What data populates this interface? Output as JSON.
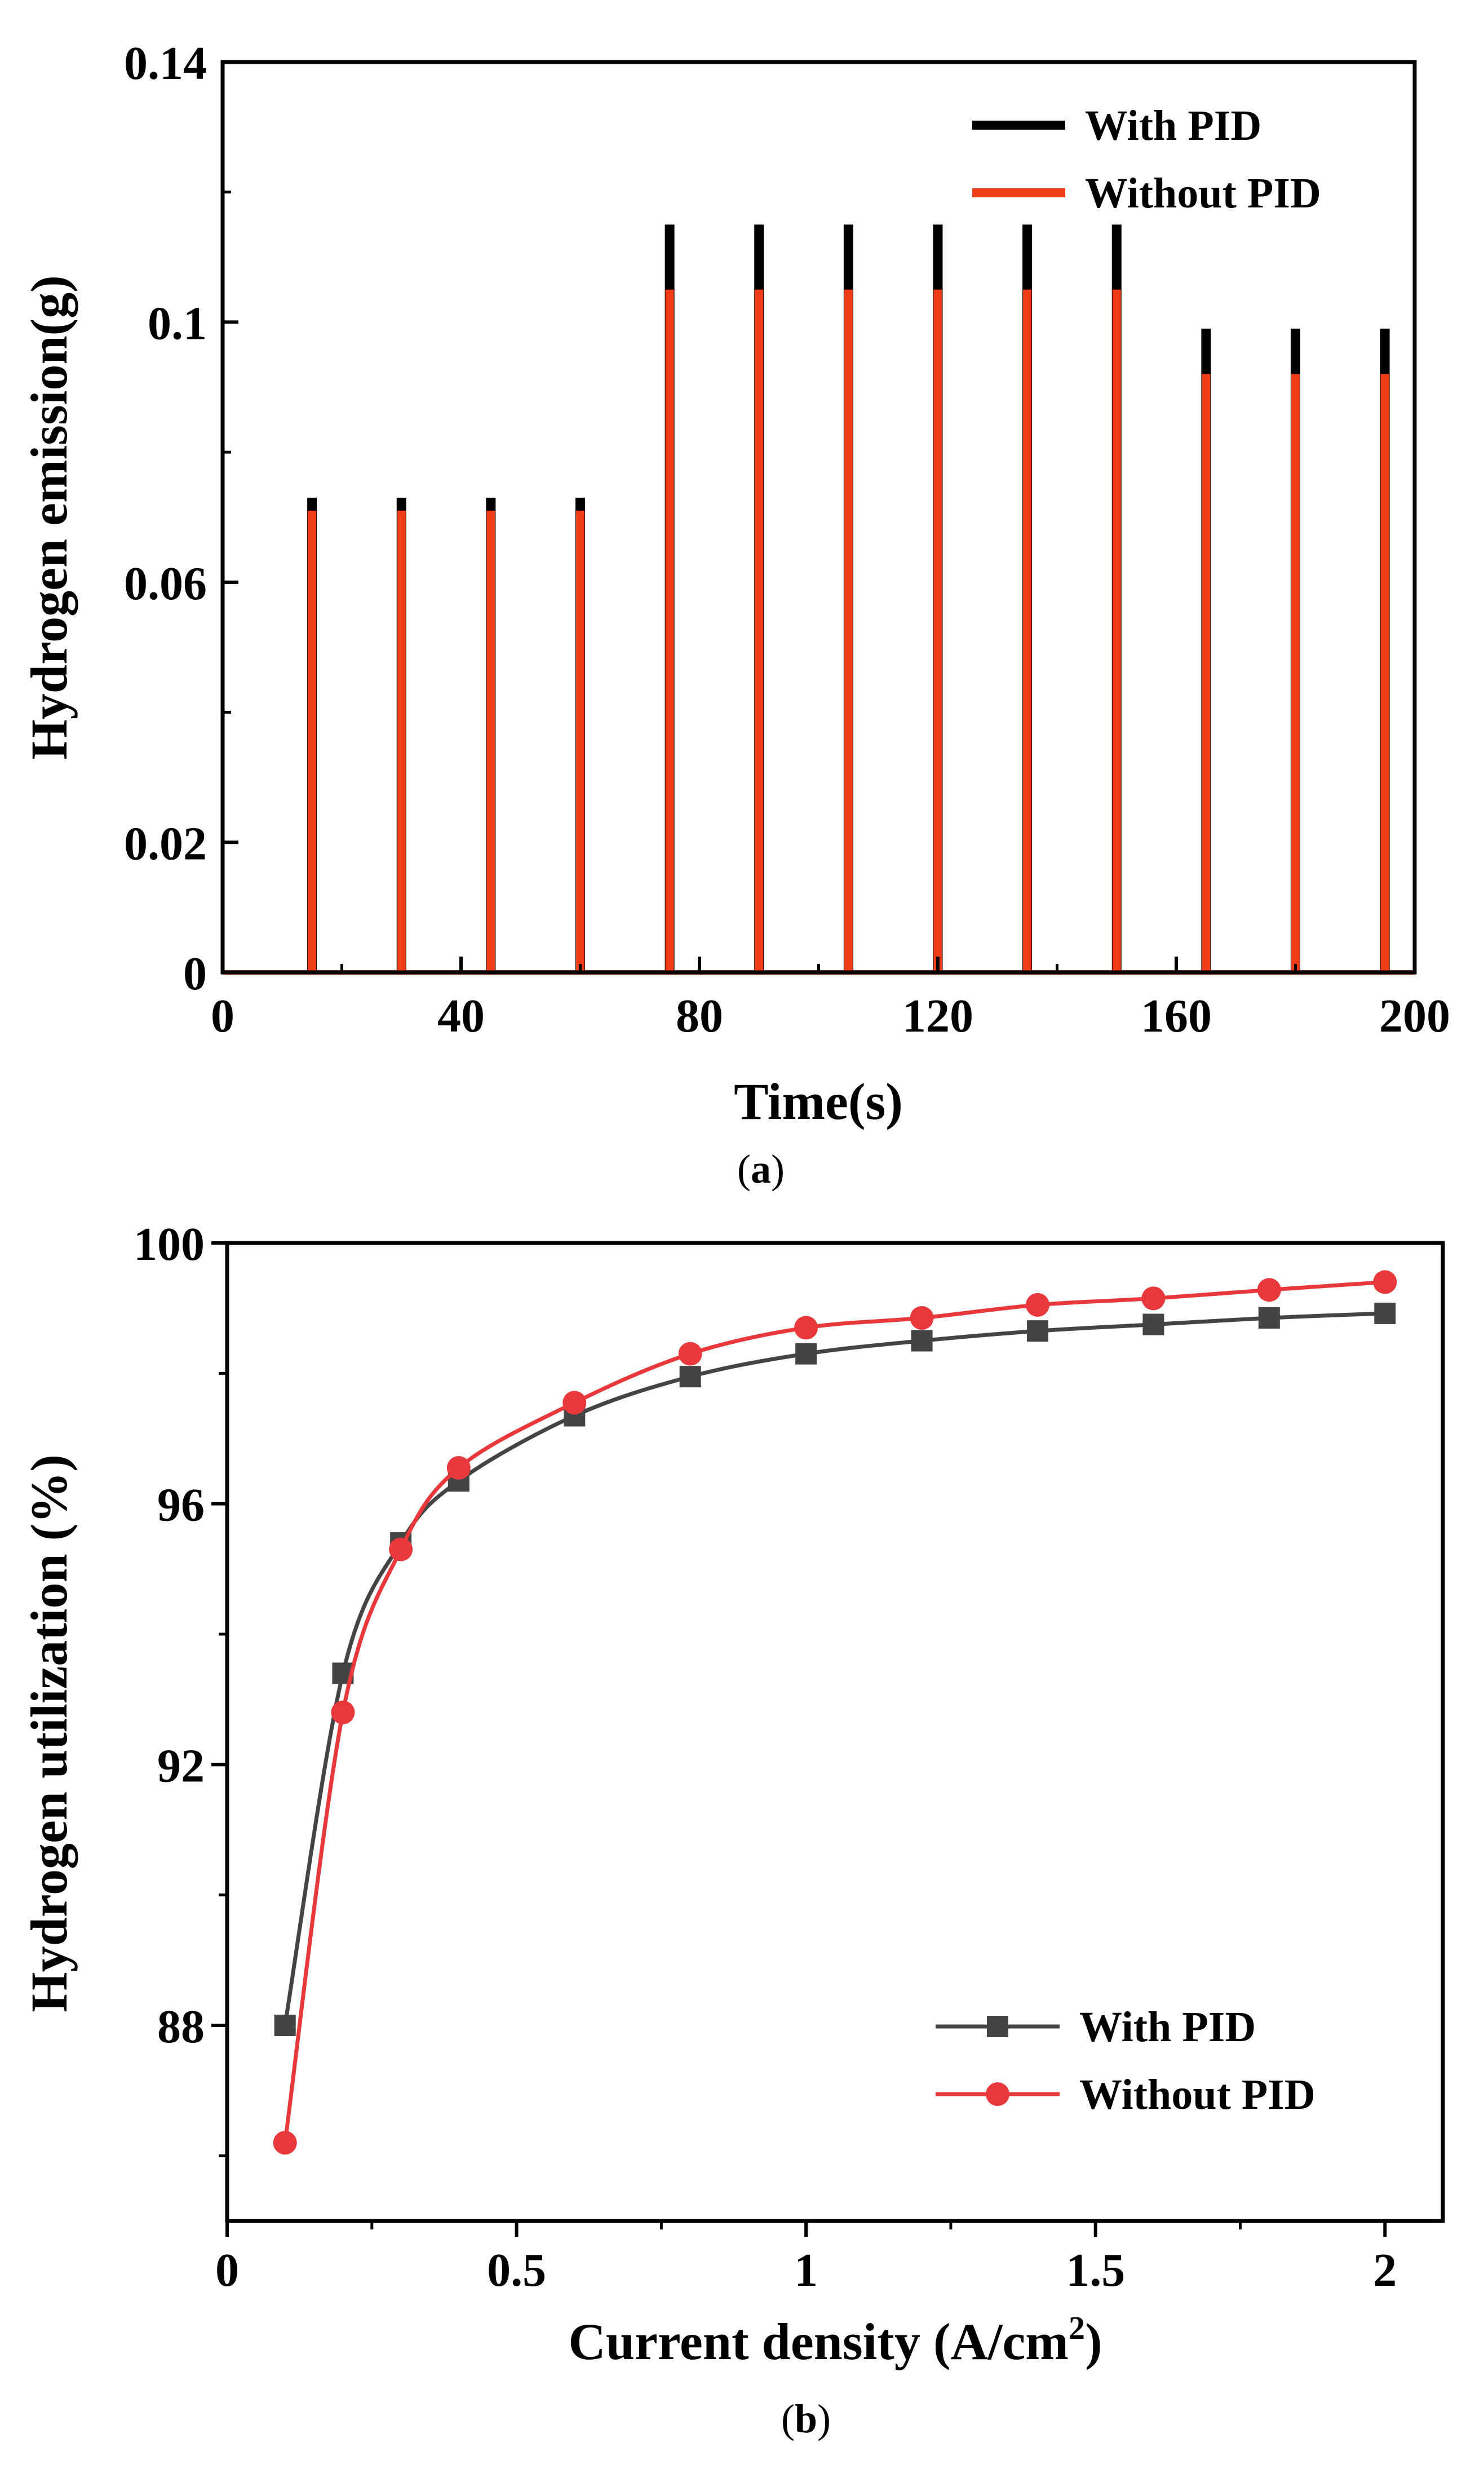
{
  "chart_data": [
    {
      "type": "line",
      "panel": "a",
      "caption_letter": "a",
      "title": "",
      "xlabel": "Time(s)",
      "ylabel": "Hydrogen emission(g)",
      "xlim": [
        0,
        200
      ],
      "ylim": [
        0,
        0.14
      ],
      "xticks": [
        0,
        40,
        80,
        120,
        160,
        200
      ],
      "xtick_labels": [
        "0",
        "40",
        "80",
        "120",
        "160",
        "200"
      ],
      "yticks": [
        0,
        0.02,
        0.06,
        0.1,
        0.14
      ],
      "ytick_labels": [
        "0",
        "0.02",
        "0.06",
        "0.1",
        "0.14"
      ],
      "legend_position": "top-right",
      "purge_times": [
        15,
        30,
        45,
        60,
        75,
        90,
        105,
        120,
        135,
        150,
        165,
        180,
        195
      ],
      "series": [
        {
          "name": "With PID",
          "color": "#000000",
          "peaks": [
            0.073,
            0.073,
            0.073,
            0.073,
            0.115,
            0.115,
            0.115,
            0.115,
            0.115,
            0.115,
            0.099,
            0.099,
            0.099
          ]
        },
        {
          "name": "Without PID",
          "color": "#f03c17",
          "peaks": [
            0.071,
            0.071,
            0.071,
            0.071,
            0.105,
            0.105,
            0.105,
            0.105,
            0.105,
            0.105,
            0.092,
            0.092,
            0.092
          ]
        }
      ]
    },
    {
      "type": "line",
      "panel": "b",
      "caption_letter": "b",
      "title": "",
      "xlabel": "Current density (A/cm",
      "xlabel_sup": "2",
      "xlabel_tail": ")",
      "ylabel": "Hydrogen utilization (%)",
      "xlim": [
        0,
        2.1
      ],
      "ylim": [
        85,
        100
      ],
      "xticks": [
        0,
        0.5,
        1,
        1.5,
        2
      ],
      "xtick_labels": [
        "0",
        "0.5",
        "1",
        "1.5",
        "2"
      ],
      "yticks": [
        88,
        92,
        96,
        100
      ],
      "ytick_labels": [
        "88",
        "92",
        "96",
        "100"
      ],
      "legend_position": "bottom-right",
      "series": [
        {
          "name": "With PID",
          "color": "#444444",
          "marker": "square",
          "x": [
            0.1,
            0.2,
            0.3,
            0.4,
            0.6,
            0.8,
            1.0,
            1.2,
            1.4,
            1.6,
            1.8,
            2.0
          ],
          "y": [
            88.0,
            93.4,
            95.4,
            96.35,
            97.35,
            97.95,
            98.3,
            98.5,
            98.65,
            98.75,
            98.85,
            98.92
          ]
        },
        {
          "name": "Without PID",
          "color": "#e8383b",
          "marker": "circle",
          "x": [
            0.1,
            0.2,
            0.3,
            0.4,
            0.6,
            0.8,
            1.0,
            1.2,
            1.4,
            1.6,
            1.8,
            2.0
          ],
          "y": [
            86.2,
            92.8,
            95.3,
            96.55,
            97.55,
            98.3,
            98.7,
            98.85,
            99.05,
            99.15,
            99.28,
            99.4
          ]
        }
      ]
    }
  ]
}
